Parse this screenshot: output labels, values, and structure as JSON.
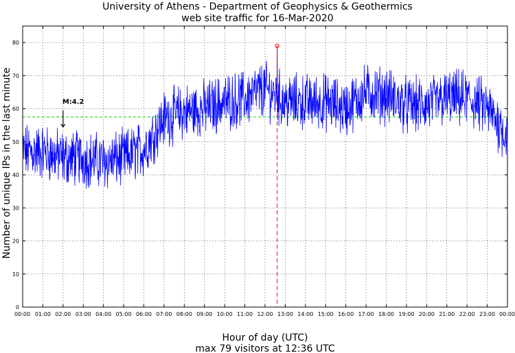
{
  "chart_data": {
    "type": "line",
    "title": "University of Athens - Department of Geophysics & Geothermics",
    "subtitle": "web site traffic for 16-Mar-2020",
    "xlabel": "Hour of day (UTC)",
    "ylabel": "Number of unique IPs in the last minute",
    "footer": "max 79 visitors at 12:36 UTC",
    "xlim": [
      0,
      24
    ],
    "ylim": [
      0,
      85
    ],
    "x_tick_labels": [
      "00:00",
      "01:00",
      "02:00",
      "03:00",
      "04:00",
      "05:00",
      "06:00",
      "07:00",
      "08:00",
      "09:00",
      "10:00",
      "11:00",
      "12:00",
      "13:00",
      "14:00",
      "15:00",
      "16:00",
      "17:00",
      "18:00",
      "19:00",
      "20:00",
      "21:00",
      "22:00",
      "23:00",
      "00:00"
    ],
    "y_ticks": [
      0,
      10,
      20,
      30,
      40,
      50,
      60,
      70,
      80
    ],
    "grid": true,
    "series": [
      {
        "name": "unique IPs",
        "color": "#0000ff",
        "hourly_mean_x": [
          0,
          1,
          2,
          3,
          4,
          5,
          6,
          7,
          8,
          9,
          10,
          11,
          12,
          13,
          14,
          15,
          16,
          17,
          18,
          19,
          20,
          21,
          22,
          23,
          24
        ],
        "hourly_mean_y": [
          47,
          47,
          45,
          45,
          44,
          45,
          48,
          57,
          59,
          60,
          62,
          63,
          66,
          62,
          62,
          62,
          60,
          65,
          64,
          61,
          61,
          63,
          63,
          60,
          52
        ],
        "peak": {
          "x": 12.6,
          "y": 79
        }
      }
    ],
    "reference_line": {
      "y": 57.5,
      "color": "#00cc00",
      "style": "dashed"
    },
    "peak_marker": {
      "x": 12.6,
      "y": 79,
      "color": "#ff0000"
    },
    "annotation": {
      "label": "M:4.2",
      "x": 2.0,
      "y": 57
    }
  }
}
